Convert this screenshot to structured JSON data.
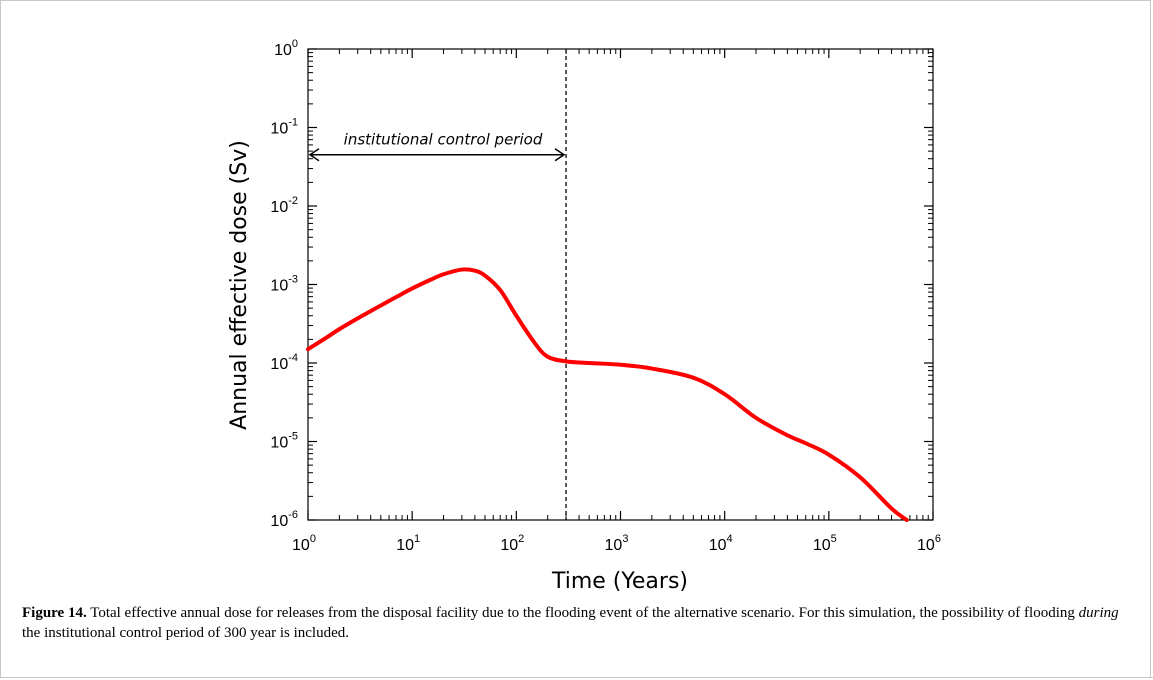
{
  "chart_data": {
    "type": "line",
    "xlabel": "Time (Years)",
    "ylabel": "Annual effective dose (Sv)",
    "xscale": "log",
    "yscale": "log",
    "xlim": [
      1,
      1000000
    ],
    "ylim": [
      1e-06,
      1
    ],
    "x_ticks": [
      {
        "base": "10",
        "exp": "0"
      },
      {
        "base": "10",
        "exp": "1"
      },
      {
        "base": "10",
        "exp": "2"
      },
      {
        "base": "10",
        "exp": "3"
      },
      {
        "base": "10",
        "exp": "4"
      },
      {
        "base": "10",
        "exp": "5"
      },
      {
        "base": "10",
        "exp": "6"
      }
    ],
    "y_ticks": [
      {
        "base": "10",
        "exp": "0"
      },
      {
        "base": "10",
        "exp": "-1"
      },
      {
        "base": "10",
        "exp": "-2"
      },
      {
        "base": "10",
        "exp": "-3"
      },
      {
        "base": "10",
        "exp": "-4"
      },
      {
        "base": "10",
        "exp": "-5"
      },
      {
        "base": "10",
        "exp": "-6"
      }
    ],
    "grid": false,
    "series": [
      {
        "color": "#ff0000",
        "x": [
          1,
          1.5,
          2,
          3,
          5,
          7,
          10,
          15,
          20,
          30,
          40,
          50,
          70,
          100,
          150,
          200,
          300,
          500,
          1000,
          2000,
          5000,
          10000,
          20000,
          40000,
          60000,
          100000,
          200000,
          400000,
          560000
        ],
        "y": [
          0.00015,
          0.00021,
          0.00027,
          0.00037,
          0.00054,
          0.00069,
          0.00089,
          0.00115,
          0.00135,
          0.00155,
          0.0015,
          0.0013,
          0.00085,
          0.0004,
          0.00018,
          0.00012,
          0.000105,
          0.0001,
          9.5e-05,
          8.5e-05,
          6.5e-05,
          4e-05,
          2e-05,
          1.2e-05,
          9.5e-06,
          6.8e-06,
          3.5e-06,
          1.4e-06,
          1e-06
        ]
      }
    ],
    "vline": {
      "x": 300,
      "style": "dashed",
      "color": "#000000"
    },
    "annotation": {
      "text": "institutional control period",
      "x_from": 1,
      "x_to": 300,
      "y": 0.045
    }
  },
  "caption": {
    "label": "Figure 14.",
    "text_before": " Total effective annual dose for releases from the disposal facility due to the flooding event of the alternative scenario. For this simulation, the possibility of flooding ",
    "emphasis": "during",
    "text_after": " the institutional control period of 300 year is included."
  }
}
